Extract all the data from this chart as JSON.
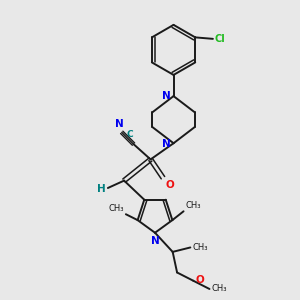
{
  "bg_color": "#e8e8e8",
  "bond_color": "#1a1a1a",
  "N_color": "#0000ee",
  "O_color": "#ee1111",
  "Cl_color": "#22bb22",
  "CN_color": "#008080",
  "figsize": [
    3.0,
    3.0
  ],
  "dpi": 100,
  "xlim": [
    0,
    10
  ],
  "ylim": [
    0,
    10
  ]
}
